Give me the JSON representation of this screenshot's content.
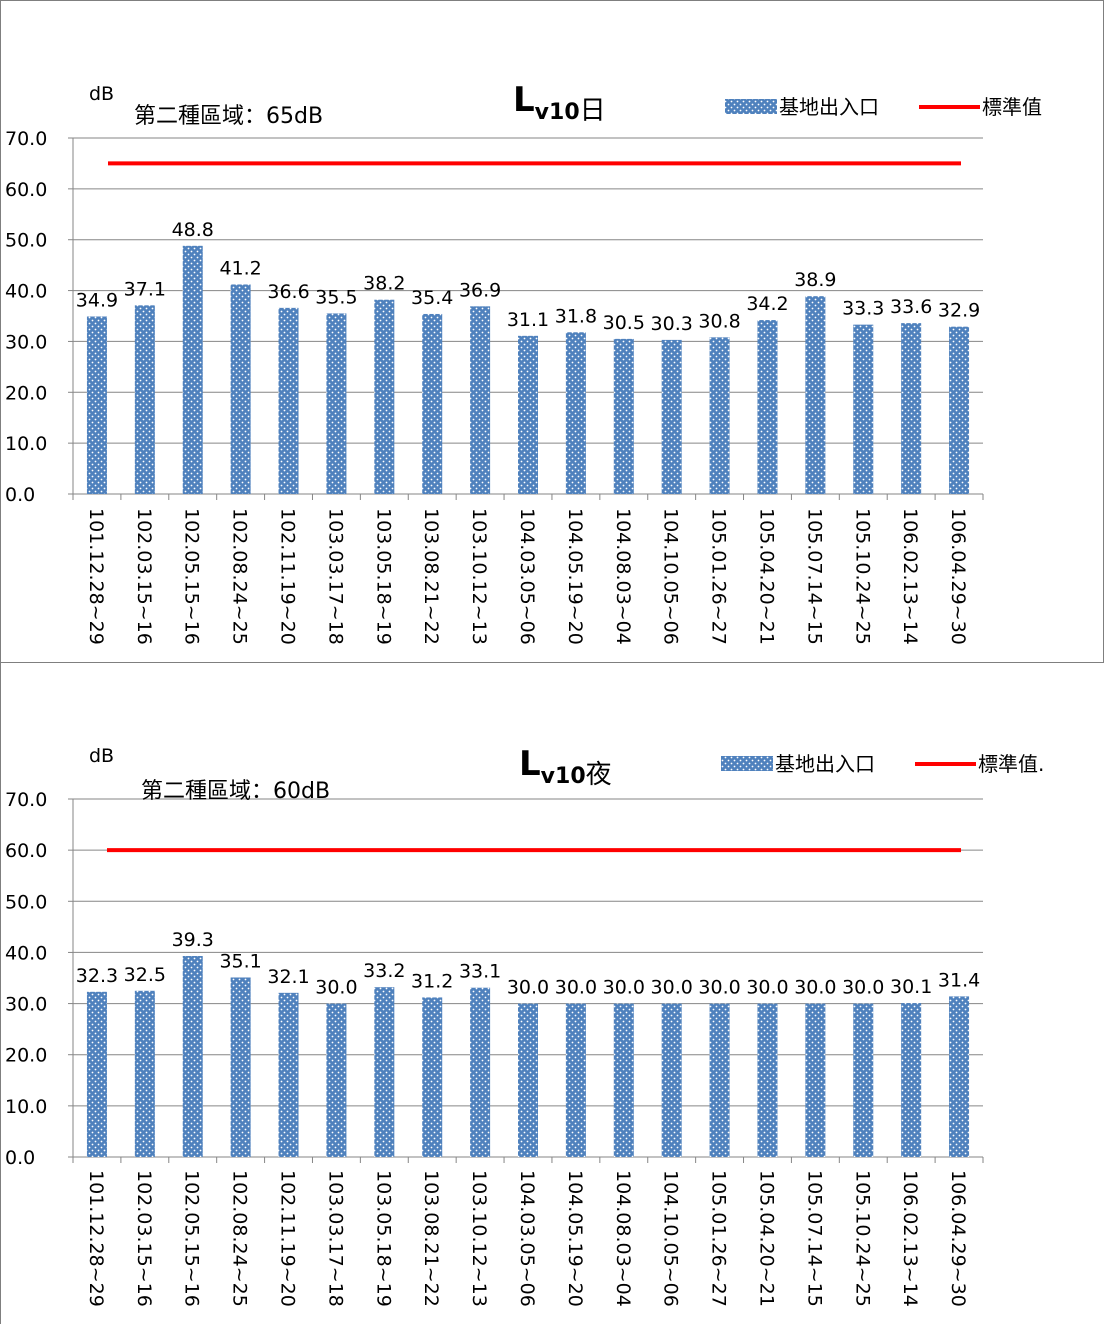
{
  "chart_data": [
    {
      "type": "bar",
      "title_main": "L",
      "title_sub": "v10",
      "title_suffix": "日",
      "unit_label": "dB",
      "zone_label": "第二種區域：65dB",
      "categories": [
        "101.12.28~29",
        "102.03.15~16",
        "102.05.15~16",
        "102.08.24~25",
        "102.11.19~20",
        "103.03.17~18",
        "103.05.18~19",
        "103.08.21~22",
        "103.10.12~13",
        "104.03.05~06",
        "104.05.19~20",
        "104.08.03~04",
        "104.10.05~06",
        "105.01.26~27",
        "105.04.20~21",
        "105.07.14~15",
        "105.10.24~25",
        "106.02.13~14",
        "106.04.29~30"
      ],
      "series": [
        {
          "name": "基地出入口",
          "type": "bar",
          "color": "#4f81bd",
          "values": [
            34.9,
            37.1,
            48.8,
            41.2,
            36.6,
            35.5,
            38.2,
            35.4,
            36.9,
            31.1,
            31.8,
            30.5,
            30.3,
            30.8,
            34.2,
            38.9,
            33.3,
            33.6,
            32.9
          ],
          "labels": [
            "34.9",
            "37.1",
            "48.8",
            "41.2",
            "36.6",
            "35.5",
            "38.2",
            "35.4",
            "36.9",
            "31.1",
            "31.8",
            "30.5",
            "30.3",
            "30.8",
            "34.2",
            "38.9",
            "33.3",
            "33.6",
            "32.9"
          ]
        },
        {
          "name": "標準值",
          "type": "line",
          "color": "#ff0000",
          "values": [
            65,
            65,
            65,
            65,
            65,
            65,
            65,
            65,
            65,
            65,
            65,
            65,
            65,
            65,
            65,
            65,
            65,
            65,
            65
          ]
        }
      ],
      "yticks": [
        "0.0",
        "10.0",
        "20.0",
        "30.0",
        "40.0",
        "50.0",
        "60.0",
        "70.0"
      ],
      "ylim": [
        0,
        70
      ],
      "grid": true,
      "legend_position": "top-right"
    },
    {
      "type": "bar",
      "title_main": "L",
      "title_sub": "v10",
      "title_suffix": "夜",
      "unit_label": "dB",
      "zone_label": "第二種區域：60dB",
      "categories": [
        "101.12.28~29",
        "102.03.15~16",
        "102.05.15~16",
        "102.08.24~25",
        "102.11.19~20",
        "103.03.17~18",
        "103.05.18~19",
        "103.08.21~22",
        "103.10.12~13",
        "104.03.05~06",
        "104.05.19~20",
        "104.08.03~04",
        "104.10.05~06",
        "105.01.26~27",
        "105.04.20~21",
        "105.07.14~15",
        "105.10.24~25",
        "106.02.13~14",
        "106.04.29~30"
      ],
      "series": [
        {
          "name": "基地出入口",
          "type": "bar",
          "color": "#4f81bd",
          "values": [
            32.3,
            32.5,
            39.3,
            35.1,
            32.1,
            30.0,
            33.2,
            31.2,
            33.1,
            30.0,
            30.0,
            30.0,
            30.0,
            30.0,
            30.0,
            30.0,
            30.0,
            30.1,
            31.4
          ],
          "labels": [
            "32.3",
            "32.5",
            "39.3",
            "35.1",
            "32.1",
            "30.0",
            "33.2",
            "31.2",
            "33.1",
            "30.0",
            "30.0",
            "30.0",
            "30.0",
            "30.0",
            "30.0",
            "30.0",
            "30.0",
            "30.1",
            "31.4"
          ]
        },
        {
          "name": "標準值.",
          "type": "line",
          "color": "#ff0000",
          "values": [
            60,
            60,
            60,
            60,
            60,
            60,
            60,
            60,
            60,
            60,
            60,
            60,
            60,
            60,
            60,
            60,
            60,
            60,
            60
          ]
        }
      ],
      "yticks": [
        "0.0",
        "10.0",
        "20.0",
        "30.0",
        "40.0",
        "50.0",
        "60.0",
        "70.0"
      ],
      "ylim": [
        0,
        70
      ],
      "grid": true,
      "legend_position": "top-right"
    }
  ]
}
